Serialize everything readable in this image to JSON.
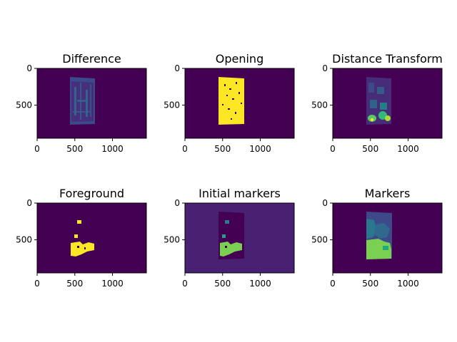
{
  "figure": {
    "background": "#ffffff"
  },
  "chart_data": [
    {
      "type": "heatmap",
      "title": "Difference",
      "xlim": [
        0,
        1450
      ],
      "ylim": [
        950,
        0
      ],
      "xticks": [
        0,
        500,
        1000
      ],
      "yticks": [
        0,
        500
      ],
      "colormap": "viridis",
      "background_color": "#440154",
      "image_extent": {
        "x": [
          450,
          790
        ],
        "y": [
          120,
          760
        ]
      },
      "content": "faint noisy difference image of a rectangular object"
    },
    {
      "type": "heatmap",
      "title": "Opening",
      "xlim": [
        0,
        1450
      ],
      "ylim": [
        950,
        0
      ],
      "xticks": [
        0,
        500,
        1000
      ],
      "yticks": [
        0,
        500
      ],
      "colormap": "viridis",
      "background_color": "#440154",
      "image_extent": {
        "x": [
          450,
          790
        ],
        "y": [
          120,
          750
        ]
      },
      "content": "binary mask, bright yellow rectangle with small holes"
    },
    {
      "type": "heatmap",
      "title": "Distance Transform",
      "xlim": [
        0,
        1450
      ],
      "ylim": [
        950,
        0
      ],
      "xticks": [
        0,
        500,
        1000
      ],
      "yticks": [
        0,
        500
      ],
      "colormap": "viridis",
      "background_color": "#440154",
      "image_extent": {
        "x": [
          450,
          790
        ],
        "y": [
          120,
          760
        ]
      },
      "content": "distance transform with bright blobs near the bottom"
    },
    {
      "type": "heatmap",
      "title": "Foreground",
      "xlim": [
        0,
        1450
      ],
      "ylim": [
        950,
        0
      ],
      "xticks": [
        0,
        500,
        1000
      ],
      "yticks": [
        0,
        500
      ],
      "colormap": "viridis",
      "background_color": "#440154",
      "image_extent": {
        "x": [
          470,
          760
        ],
        "y": [
          230,
          750
        ]
      },
      "content": "sure-foreground yellow patches, mostly near the bottom"
    },
    {
      "type": "heatmap",
      "title": "Initial markers",
      "xlim": [
        0,
        1450
      ],
      "ylim": [
        950,
        0
      ],
      "xticks": [
        0,
        500,
        1000
      ],
      "yticks": [
        0,
        500
      ],
      "colormap": "viridis",
      "background_color": "#482173",
      "image_extent": {
        "x": [
          450,
          790
        ],
        "y": [
          120,
          760
        ]
      },
      "content": "labelled markers, green region at bottom of object"
    },
    {
      "type": "heatmap",
      "title": "Markers",
      "xlim": [
        0,
        1450
      ],
      "ylim": [
        950,
        0
      ],
      "xticks": [
        0,
        500,
        1000
      ],
      "yticks": [
        0,
        500
      ],
      "colormap": "viridis",
      "background_color": "#440154",
      "image_extent": {
        "x": [
          450,
          790
        ],
        "y": [
          120,
          760
        ]
      },
      "content": "watershed segmentation with blue, teal and green regions"
    }
  ]
}
